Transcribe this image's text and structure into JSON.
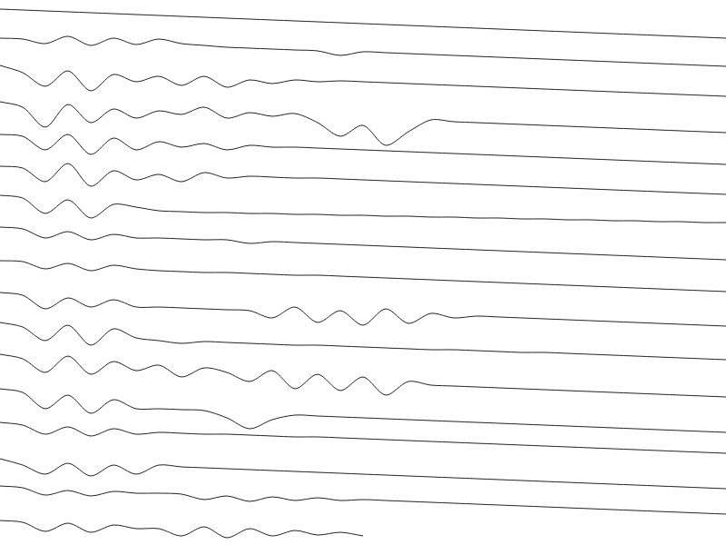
{
  "chart_data": {
    "type": "line",
    "x": [
      0,
      25,
      50,
      75,
      100,
      125,
      150,
      175,
      200,
      225,
      250,
      275,
      300,
      325,
      350,
      375,
      400,
      425,
      450,
      475,
      500,
      525,
      550,
      575,
      600,
      625,
      650,
      675,
      700,
      725,
      750,
      775,
      800
    ],
    "xlim": [
      0,
      800
    ],
    "ylim": [
      600,
      0
    ],
    "grid": false,
    "tick_labels": false,
    "color": "#222222",
    "series": [
      {
        "values": [
          10,
          11,
          12,
          13,
          14,
          15,
          16,
          17,
          18,
          19,
          20,
          21,
          22,
          23,
          24,
          25,
          26,
          27,
          28,
          29,
          30,
          31,
          32,
          33,
          34,
          35,
          36,
          37,
          38,
          39,
          40,
          41,
          42
        ]
      },
      {
        "values": [
          42,
          43,
          48,
          40,
          50,
          42,
          49,
          43,
          48,
          50,
          52,
          53,
          54,
          55,
          56,
          61,
          57,
          58,
          59,
          60,
          61,
          62,
          63,
          64,
          65,
          66,
          67,
          68,
          69,
          70,
          71,
          72,
          73
        ]
      },
      {
        "values": [
          72,
          80,
          95,
          78,
          100,
          82,
          90,
          84,
          94,
          84,
          96,
          88,
          92,
          88,
          90,
          89,
          90,
          91,
          92,
          93,
          94,
          95,
          96,
          97,
          98,
          99,
          100,
          101,
          102,
          103,
          104,
          105,
          106
        ]
      },
      {
        "values": [
          112,
          118,
          140,
          115,
          135,
          120,
          130,
          122,
          126,
          118,
          130,
          124,
          128,
          125,
          135,
          150,
          138,
          160,
          145,
          132,
          134,
          135,
          136,
          137,
          138,
          139,
          140,
          141,
          142,
          143,
          144,
          145,
          146
        ]
      },
      {
        "values": [
          148,
          150,
          165,
          148,
          170,
          152,
          165,
          156,
          162,
          158,
          165,
          160,
          162,
          162,
          163,
          164,
          165,
          166,
          167,
          168,
          169,
          170,
          171,
          172,
          173,
          174,
          175,
          176,
          177,
          178,
          179,
          180,
          181
        ]
      },
      {
        "values": [
          183,
          185,
          200,
          180,
          205,
          188,
          198,
          192,
          200,
          190,
          196,
          194,
          195,
          196,
          196,
          197,
          198,
          199,
          200,
          201,
          202,
          203,
          204,
          205,
          206,
          207,
          208,
          209,
          210,
          211,
          212,
          213,
          214
        ]
      },
      {
        "values": [
          215,
          218,
          235,
          220,
          240,
          225,
          228,
          232,
          233,
          234,
          234,
          235,
          235,
          236,
          236,
          237,
          237,
          238,
          238,
          239,
          239,
          240,
          240,
          241,
          241,
          242,
          242,
          243,
          243,
          244,
          244,
          245,
          245
        ]
      },
      {
        "values": [
          250,
          252,
          262,
          255,
          264,
          258,
          262,
          262,
          263,
          264,
          264,
          268,
          266,
          267,
          268,
          269,
          270,
          271,
          272,
          273,
          274,
          275,
          276,
          277,
          278,
          279,
          280,
          281,
          282,
          283,
          284,
          285,
          286
        ]
      },
      {
        "values": [
          287,
          288,
          296,
          290,
          298,
          292,
          296,
          298,
          299,
          300,
          300,
          301,
          302,
          303,
          303,
          304,
          305,
          306,
          307,
          308,
          309,
          310,
          311,
          312,
          313,
          314,
          315,
          316,
          317,
          318,
          319,
          320,
          321
        ]
      },
      {
        "values": [
          322,
          325,
          340,
          328,
          338,
          330,
          338,
          338,
          339,
          340,
          341,
          342,
          350,
          338,
          355,
          342,
          358,
          340,
          356,
          345,
          350,
          348,
          349,
          350,
          351,
          352,
          353,
          354,
          355,
          356,
          357,
          358,
          359
        ]
      },
      {
        "values": [
          355,
          360,
          375,
          358,
          380,
          362,
          372,
          375,
          378,
          376,
          377,
          378,
          379,
          380,
          380,
          381,
          382,
          383,
          384,
          385,
          385,
          386,
          387,
          388,
          388,
          389,
          390,
          391,
          392,
          393,
          394,
          395,
          396
        ]
      },
      {
        "values": [
          390,
          395,
          410,
          392,
          412,
          398,
          408,
          402,
          415,
          405,
          410,
          420,
          408,
          428,
          412,
          430,
          415,
          435,
          420,
          424,
          425,
          426,
          427,
          428,
          429,
          430,
          431,
          432,
          433,
          434,
          435,
          436,
          437
        ]
      },
      {
        "values": [
          428,
          432,
          450,
          435,
          455,
          440,
          450,
          450,
          451,
          452,
          460,
          472,
          462,
          457,
          458,
          459,
          460,
          461,
          462,
          463,
          464,
          465,
          466,
          467,
          468,
          469,
          470,
          471,
          472,
          473,
          474,
          475,
          476
        ]
      },
      {
        "values": [
          465,
          468,
          478,
          470,
          480,
          472,
          478,
          476,
          477,
          478,
          478,
          479,
          480,
          481,
          481,
          482,
          483,
          484,
          485,
          486,
          487,
          488,
          489,
          490,
          491,
          492,
          493,
          494,
          495,
          496,
          497,
          498,
          499
        ]
      },
      {
        "values": [
          505,
          512,
          522,
          510,
          524,
          512,
          522,
          512,
          514,
          515,
          516,
          517,
          518,
          519,
          520,
          521,
          522,
          523,
          524,
          525,
          526,
          527,
          528,
          529,
          530,
          531,
          532,
          533,
          534,
          535,
          536,
          537,
          538
        ]
      },
      {
        "values": [
          535,
          537,
          545,
          540,
          546,
          541,
          543,
          543,
          544,
          550,
          546,
          552,
          547,
          551,
          548,
          551,
          550,
          551,
          552,
          553,
          554,
          555,
          556,
          557,
          558,
          559,
          560,
          561,
          562,
          563,
          564,
          565,
          566
        ]
      },
      {
        "values": [
          573,
          575,
          585,
          576,
          586,
          578,
          582,
          582,
          590,
          580,
          592,
          582,
          590,
          584,
          589,
          586,
          590,
          null,
          null,
          null,
          null,
          null,
          null,
          null,
          null,
          null,
          null,
          null,
          null,
          null,
          null,
          null,
          null
        ]
      }
    ]
  }
}
